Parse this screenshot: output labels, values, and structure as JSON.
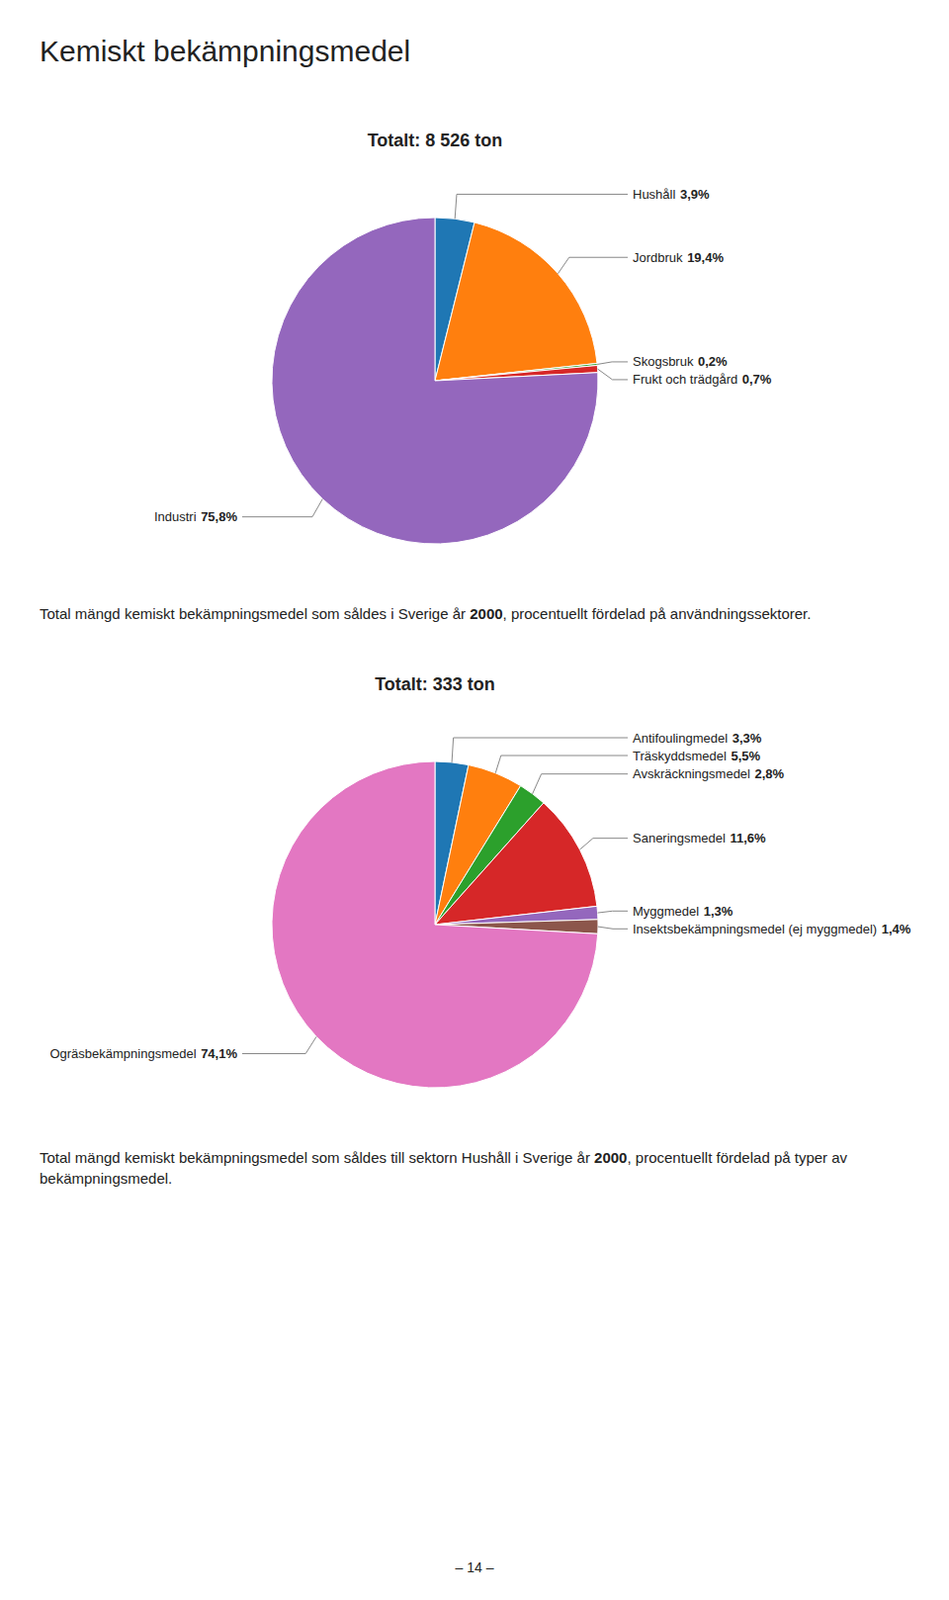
{
  "title": "Kemiskt bekämpningsmedel",
  "annotations": [
    "– 14 –"
  ],
  "chart_data": [
    {
      "type": "pie",
      "title": "Totalt: 8 526 ton",
      "categories": [
        "Hushåll",
        "Jordbruk",
        "Skogsbruk",
        "Frukt och trädgård",
        "Industri"
      ],
      "values": [
        3.9,
        19.4,
        0.2,
        0.7,
        75.8
      ],
      "value_labels": [
        "3,9%",
        "19,4%",
        "0,2%",
        "0,7%",
        "75,8%"
      ],
      "annotations": [
        "Total mängd kemiskt bekämpningsmedel som såldes i Sverige år ",
        "2000",
        ", procentuellt fördelad på användningssektorer."
      ]
    },
    {
      "type": "pie",
      "title": "Totalt: 333 ton",
      "categories": [
        "Antifoulingmedel",
        "Träskyddsmedel",
        "Avskräckningsmedel",
        "Saneringsmedel",
        "Myggmedel",
        "Insektsbekämpningsmedel (ej myggmedel)",
        "Ogräsbekämpningsmedel"
      ],
      "values": [
        3.3,
        5.5,
        2.8,
        11.6,
        1.3,
        1.4,
        74.1
      ],
      "value_labels": [
        "3,3%",
        "5,5%",
        "2,8%",
        "11,6%",
        "1,3%",
        "1,4%",
        "74,1%"
      ],
      "annotations": [
        "Total mängd kemiskt bekämpningsmedel som såldes till sektorn Hushåll i Sverige år ",
        "2000",
        ", procentuellt fördelad på typer av bekämpningsmedel."
      ]
    }
  ]
}
